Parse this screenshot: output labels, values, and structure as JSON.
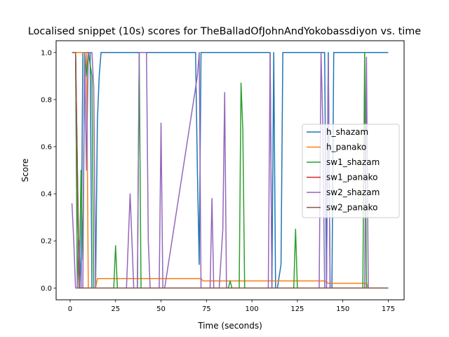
{
  "chart_data": {
    "type": "line",
    "title": "Localised snippet (10s) scores for TheBalladOfJohnAndYokobassdiyon vs. time",
    "xlabel": "Time (seconds)",
    "ylabel": "Score",
    "xlim": [
      -7.7,
      183.7
    ],
    "ylim": [
      -0.05,
      1.05
    ],
    "xticks": [
      0,
      25,
      50,
      75,
      100,
      125,
      150,
      175
    ],
    "yticks": [
      0.0,
      0.2,
      0.4,
      0.6,
      0.8,
      1.0
    ],
    "ytick_labels": [
      "0.0",
      "0.2",
      "0.4",
      "0.6",
      "0.8",
      "1.0"
    ],
    "grid": false,
    "legend_position": "center-right",
    "series": [
      {
        "name": "h_shazam",
        "color": "#1f77b4",
        "x": [
          1,
          3,
          4,
          6,
          7,
          8,
          11,
          12,
          14,
          15,
          16,
          17,
          69,
          70,
          71,
          72,
          73,
          110,
          111,
          112,
          113,
          114,
          115,
          116,
          117,
          140,
          141,
          142,
          143,
          144,
          145,
          146,
          175
        ],
        "y": [
          1.0,
          1.0,
          0.0,
          0.0,
          1.0,
          1.0,
          1.0,
          0.0,
          0.0,
          0.71,
          0.9,
          1.0,
          1.0,
          0.5,
          0.1,
          1.0,
          1.0,
          1.0,
          0.0,
          1.0,
          0.0,
          0.0,
          0.05,
          0.1,
          1.0,
          1.0,
          0.0,
          1.0,
          0.0,
          0.0,
          1.0,
          1.0,
          1.0
        ]
      },
      {
        "name": "h_panako",
        "color": "#ff7f0e",
        "x": [
          1,
          9,
          10,
          14,
          15,
          72,
          73,
          140,
          142,
          163,
          164,
          175
        ],
        "y": [
          1.0,
          1.0,
          0.0,
          0.0,
          0.04,
          0.04,
          0.03,
          0.03,
          0.02,
          0.02,
          0.0,
          0.0
        ]
      },
      {
        "name": "sw1_shazam",
        "color": "#2ca02c",
        "x": [
          1,
          3,
          4,
          5,
          6,
          7,
          8,
          9,
          10,
          12,
          13,
          24,
          25,
          26,
          37,
          38,
          39,
          87,
          88,
          89,
          93,
          94,
          95,
          96,
          123,
          124,
          125,
          161,
          162,
          163,
          164,
          175
        ],
        "y": [
          1.0,
          1.0,
          0.0,
          0.0,
          0.5,
          0.12,
          1.0,
          0.9,
          1.0,
          0.9,
          0.0,
          0.0,
          0.18,
          0.0,
          0.0,
          1.0,
          0.0,
          0.0,
          0.03,
          0.0,
          0.0,
          0.87,
          0.67,
          0.0,
          0.0,
          0.25,
          0.0,
          0.0,
          1.0,
          0.0,
          0.0,
          0.0
        ]
      },
      {
        "name": "sw1_panako",
        "color": "#d62728",
        "x": [
          1,
          3,
          4,
          5,
          6,
          7,
          175
        ],
        "y": [
          1.0,
          1.0,
          0.5,
          0.0,
          0.0,
          0.0,
          0.0
        ]
      },
      {
        "name": "sw2_shazam",
        "color": "#9467bd",
        "x": [
          1,
          2,
          3,
          4,
          5,
          6,
          7,
          8,
          9,
          10,
          11,
          12,
          13,
          14,
          15,
          31,
          33,
          35,
          37,
          38,
          39,
          42,
          43,
          44,
          49,
          50,
          51,
          52,
          70,
          71,
          72,
          77,
          78,
          79,
          82,
          84,
          85,
          86,
          88,
          89,
          109,
          110,
          111,
          112,
          137,
          138,
          139,
          140,
          141,
          142,
          143,
          161,
          162,
          163,
          164,
          175
        ],
        "y": [
          0.36,
          0.2,
          0.0,
          0.0,
          0.2,
          0.0,
          0.0,
          1.0,
          0.5,
          1.0,
          1.0,
          1.0,
          0.85,
          0.0,
          0.0,
          0.0,
          0.4,
          0.0,
          0.0,
          1.0,
          1.0,
          1.0,
          0.2,
          0.0,
          0.0,
          0.7,
          0.0,
          0.0,
          0.9,
          1.0,
          0.0,
          0.0,
          0.38,
          0.0,
          0.0,
          0.25,
          0.83,
          0.0,
          0.0,
          0.0,
          0.0,
          1.0,
          0.0,
          0.0,
          0.0,
          1.0,
          0.7,
          0.0,
          0.0,
          0.98,
          0.0,
          0.0,
          0.0,
          0.98,
          0.0,
          0.0
        ]
      },
      {
        "name": "sw2_panako",
        "color": "#8c564b",
        "x": [
          1,
          3,
          4,
          5,
          6,
          7,
          175
        ],
        "y": [
          1.0,
          1.0,
          0.5,
          0.0,
          0.0,
          0.0,
          0.0
        ]
      }
    ]
  }
}
